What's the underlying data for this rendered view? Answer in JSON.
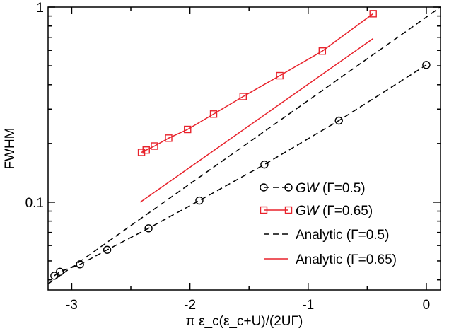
{
  "chart_data": {
    "type": "line",
    "title": "",
    "xlabel": "π ε_c(ε_c+U)/(2UΓ)",
    "ylabel": "FWHM",
    "x_scale": "linear",
    "y_scale": "log",
    "xlim": [
      -3.2,
      0.12
    ],
    "ylim": [
      0.0355,
      1.0
    ],
    "x_ticks": [
      -3,
      -2,
      -1,
      0
    ],
    "x_tick_labels": [
      "-3",
      "-2",
      "-1",
      "0"
    ],
    "y_ticks": [
      0.1,
      1
    ],
    "y_tick_labels": [
      "0.1",
      "1"
    ],
    "grid": false,
    "legend_position": "bottom-right",
    "series": [
      {
        "name": "GW (Γ=0.5)",
        "name_parts": [
          "GW",
          " (Γ=0.5)"
        ],
        "color": "#000000",
        "line_style": "dashed",
        "marker": "circle",
        "x": [
          -3.147,
          -3.1,
          -2.93,
          -2.7,
          -2.35,
          -1.92,
          -1.37,
          -0.74,
          0.0
        ],
        "y": [
          0.042,
          0.044,
          0.048,
          0.057,
          0.0735,
          0.102,
          0.156,
          0.262,
          0.505
        ]
      },
      {
        "name": "GW (Γ=0.65)",
        "name_parts": [
          "GW",
          " (Γ=0.65)"
        ],
        "color": "#e8222b",
        "line_style": "solid",
        "marker": "square",
        "x": [
          -2.41,
          -2.37,
          -2.3,
          -2.18,
          -2.02,
          -1.8,
          -1.55,
          -1.24,
          -0.88,
          -0.45
        ],
        "y": [
          0.18,
          0.185,
          0.194,
          0.213,
          0.236,
          0.283,
          0.348,
          0.445,
          0.595,
          0.925
        ]
      },
      {
        "name": "Analytic (Γ=0.5)",
        "color": "#000000",
        "line_style": "dashed",
        "marker": "none",
        "x": [
          -3.2,
          0.12
        ],
        "y": [
          0.0381,
          1.0
        ]
      },
      {
        "name": "Analytic (Γ=0.65)",
        "color": "#e8222b",
        "line_style": "solid",
        "marker": "none",
        "x": [
          -2.42,
          -0.45
        ],
        "y": [
          0.1,
          0.69
        ]
      }
    ]
  }
}
